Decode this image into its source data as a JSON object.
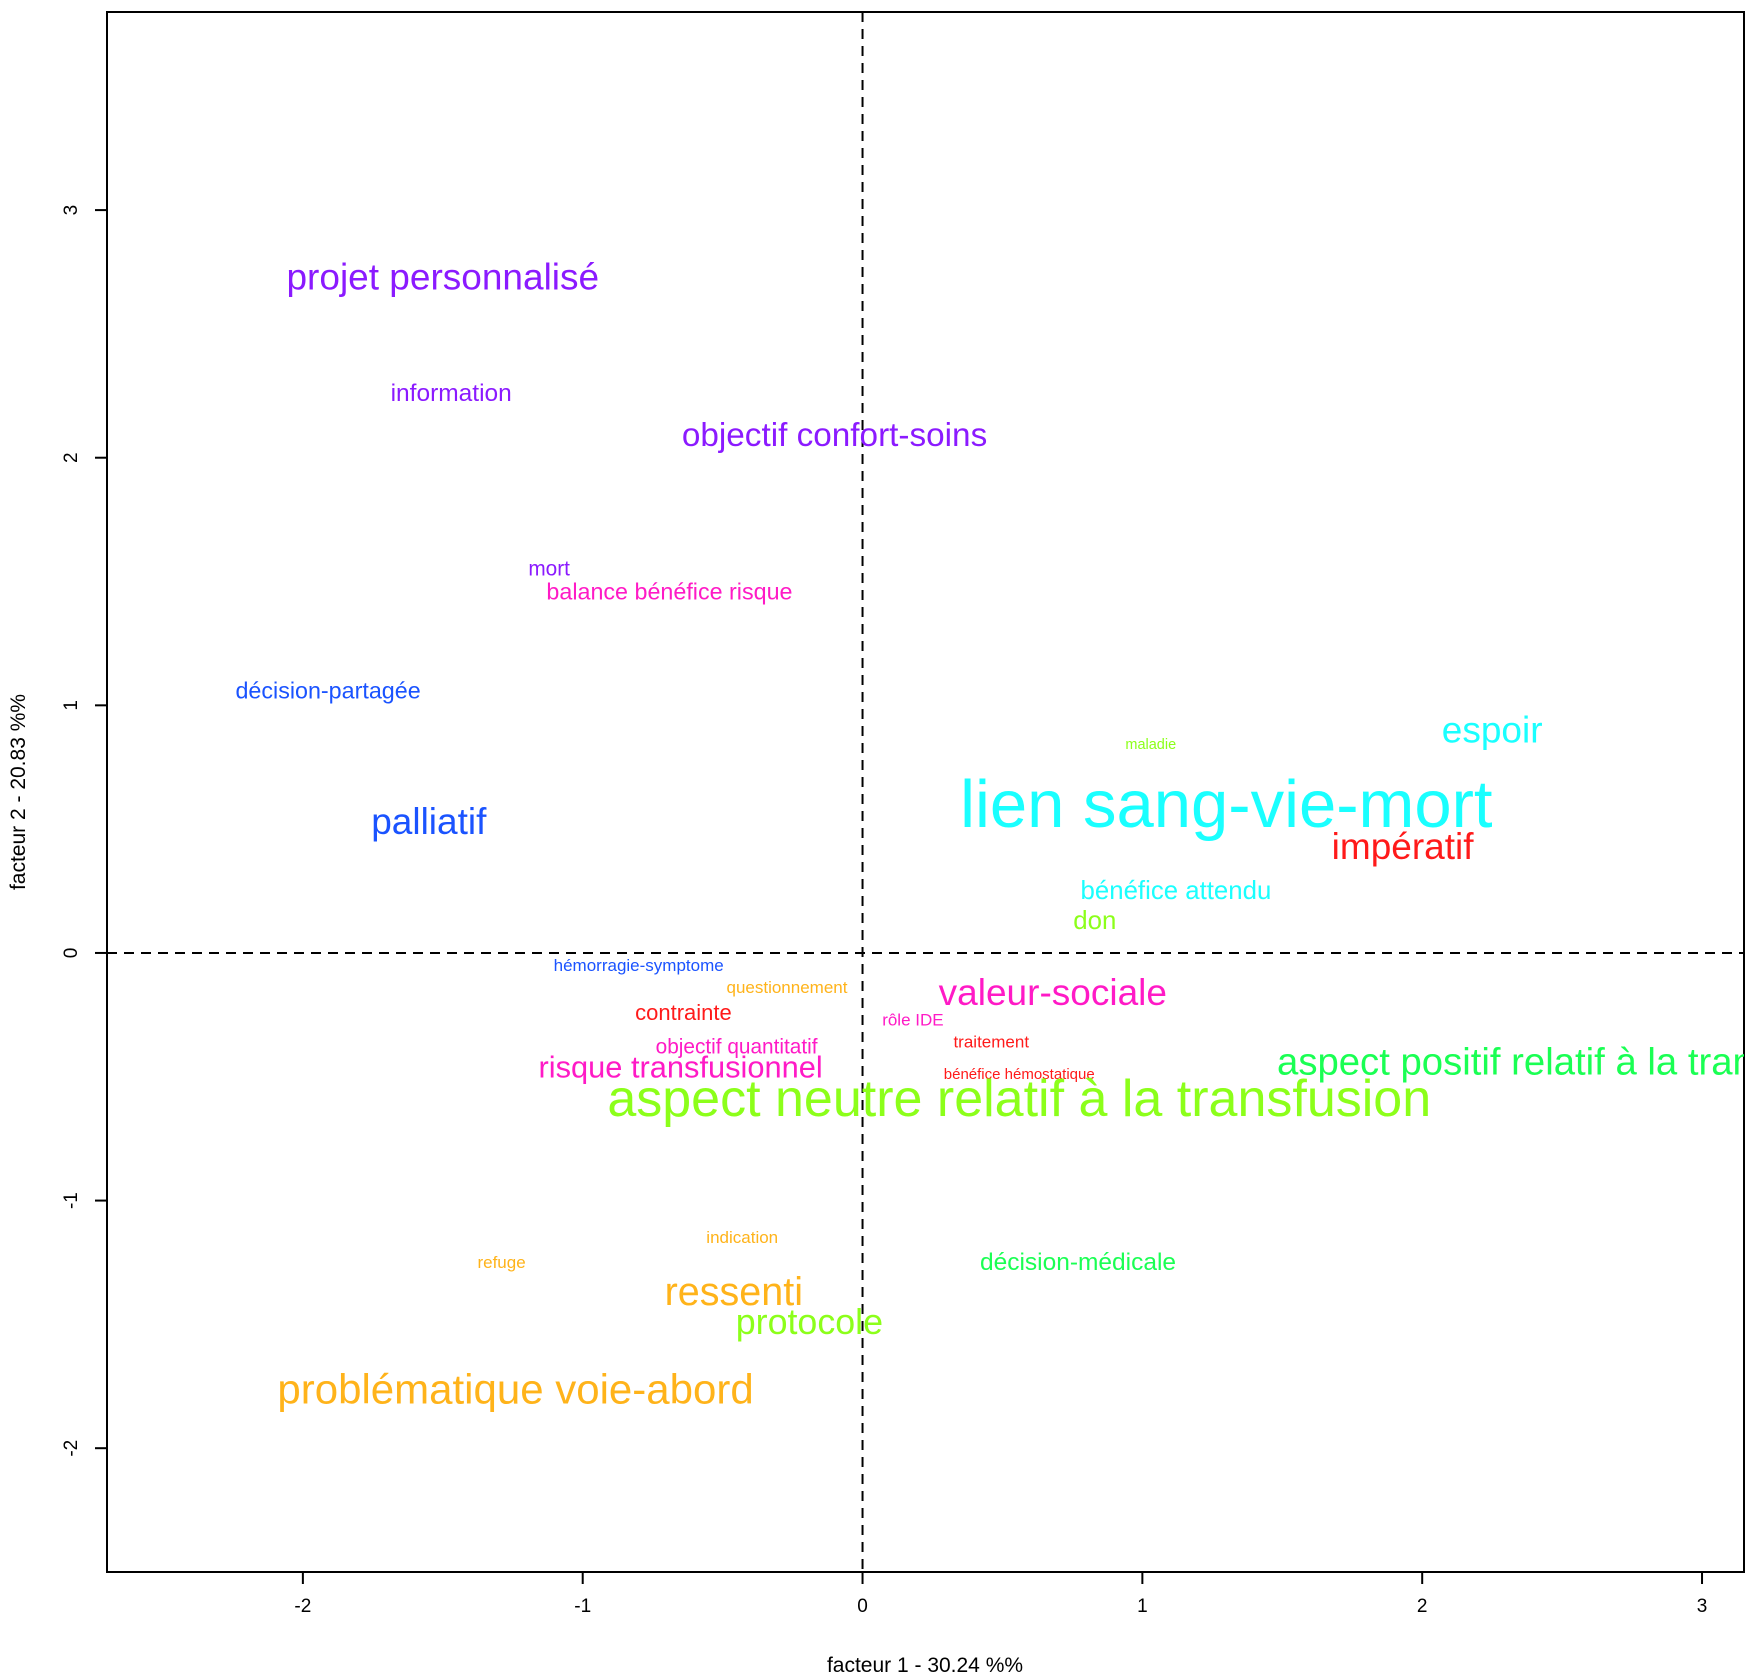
{
  "chart_data": {
    "type": "scatter",
    "title": "",
    "xlabel": "facteur  1  - 30.24 %%",
    "ylabel": "facteur  2  - 20.83 %%",
    "xlim": [
      -2.7,
      3.15
    ],
    "ylim": [
      -2.5,
      3.8
    ],
    "xticks": [
      -2,
      -1,
      0,
      1,
      2,
      3
    ],
    "yticks": [
      -2,
      -1,
      0,
      1,
      2,
      3
    ],
    "reference_lines": {
      "x": 0,
      "y": 0,
      "style": "dashed"
    },
    "grid": false,
    "points": [
      {
        "label": "projet personnalisé",
        "x": -1.5,
        "y": 2.73,
        "color": "#8B1AFF",
        "size": 1.0
      },
      {
        "label": "information",
        "x": -1.47,
        "y": 2.26,
        "color": "#8B1AFF",
        "size": 0.5
      },
      {
        "label": "objectif confort-soins",
        "x": -0.1,
        "y": 2.09,
        "color": "#8B1AFF",
        "size": 0.85
      },
      {
        "label": "mort",
        "x": -1.12,
        "y": 1.55,
        "color": "#8B1AFF",
        "size": 0.35
      },
      {
        "label": "balance bénéfice risque",
        "x": -0.69,
        "y": 1.46,
        "color": "#FF1AC6",
        "size": 0.45
      },
      {
        "label": "décision-partagée",
        "x": -1.91,
        "y": 1.06,
        "color": "#1A53FF",
        "size": 0.45
      },
      {
        "label": "palliatif",
        "x": -1.55,
        "y": 0.53,
        "color": "#1A53FF",
        "size": 1.0
      },
      {
        "label": "maladie",
        "x": 1.03,
        "y": 0.84,
        "color": "#8CFF1A",
        "size": 0.1
      },
      {
        "label": "espoir",
        "x": 2.25,
        "y": 0.9,
        "color": "#1AFFFF",
        "size": 1.0
      },
      {
        "label": "lien sang-vie-mort",
        "x": 1.3,
        "y": 0.6,
        "color": "#1AFFFF",
        "size": 2.2
      },
      {
        "label": "impératif",
        "x": 1.93,
        "y": 0.43,
        "color": "#FF1A1A",
        "size": 1.0
      },
      {
        "label": "bénéfice attendu",
        "x": 1.12,
        "y": 0.25,
        "color": "#1AFFFF",
        "size": 0.55
      },
      {
        "label": "don",
        "x": 0.83,
        "y": 0.13,
        "color": "#8CFF1A",
        "size": 0.55
      },
      {
        "label": "hémorragie-symptome",
        "x": -0.8,
        "y": -0.05,
        "color": "#1A53FF",
        "size": 0.2
      },
      {
        "label": "questionnement",
        "x": -0.27,
        "y": -0.14,
        "color": "#FFB31A",
        "size": 0.2
      },
      {
        "label": "valeur-sociale",
        "x": 0.68,
        "y": -0.16,
        "color": "#FF1AC6",
        "size": 1.0
      },
      {
        "label": "contrainte",
        "x": -0.64,
        "y": -0.24,
        "color": "#FF1A1A",
        "size": 0.4
      },
      {
        "label": "rôle IDE",
        "x": 0.18,
        "y": -0.27,
        "color": "#FF1AC6",
        "size": 0.2
      },
      {
        "label": "traitement",
        "x": 0.46,
        "y": -0.36,
        "color": "#FF1A1A",
        "size": 0.2
      },
      {
        "label": "objectif quantitatif",
        "x": -0.45,
        "y": -0.38,
        "color": "#FF1AC6",
        "size": 0.35
      },
      {
        "label": "risque transfusionnel",
        "x": -0.65,
        "y": -0.46,
        "color": "#FF1AC6",
        "size": 0.75
      },
      {
        "label": "bénéfice hémostatique",
        "x": 0.56,
        "y": -0.49,
        "color": "#FF1A1A",
        "size": 0.12
      },
      {
        "label": "aspect positif relatif à la transfusion",
        "x": 2.55,
        "y": -0.44,
        "color": "#1AFF53",
        "size": 1.05
      },
      {
        "label": "aspect neutre relatif à la transfusion",
        "x": 0.56,
        "y": -0.59,
        "color": "#8CFF1A",
        "size": 1.6
      },
      {
        "label": "indication",
        "x": -0.43,
        "y": -1.15,
        "color": "#FFB31A",
        "size": 0.2
      },
      {
        "label": "refuge",
        "x": -1.29,
        "y": -1.25,
        "color": "#FFB31A",
        "size": 0.2
      },
      {
        "label": "décision-médicale",
        "x": 0.77,
        "y": -1.25,
        "color": "#1AFF53",
        "size": 0.5
      },
      {
        "label": "ressenti",
        "x": -0.46,
        "y": -1.37,
        "color": "#FFB31A",
        "size": 1.1
      },
      {
        "label": "protocole",
        "x": -0.19,
        "y": -1.49,
        "color": "#8CFF1A",
        "size": 0.95
      },
      {
        "label": "problématique voie-abord",
        "x": -1.24,
        "y": -1.76,
        "color": "#FFB31A",
        "size": 1.2
      }
    ]
  }
}
